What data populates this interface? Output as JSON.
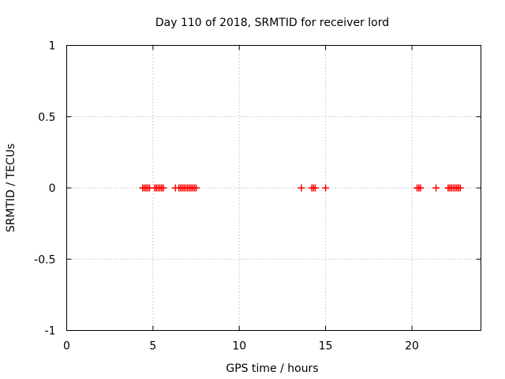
{
  "chart_data": {
    "type": "scatter",
    "title": "Day 110 of 2018, SRMTID for receiver lord",
    "xlabel": "GPS time / hours",
    "ylabel": "SRMTID / TECUs",
    "xlim": [
      0,
      24
    ],
    "ylim": [
      -1,
      1
    ],
    "grid": true,
    "xticks": [
      0,
      5,
      10,
      15,
      20
    ],
    "yticks": [
      -1,
      -0.5,
      0,
      0.5,
      1
    ],
    "xtick_labels": [
      "0",
      "5",
      "10",
      "15",
      "20"
    ],
    "ytick_labels": [
      "-1",
      "-0.5",
      "0",
      "0.5",
      "1"
    ],
    "marker": "+",
    "marker_color": "#ff0000",
    "series": [
      {
        "name": "SRMTID",
        "x": [
          4.4,
          4.5,
          4.6,
          4.7,
          4.8,
          5.1,
          5.2,
          5.3,
          5.4,
          5.5,
          5.6,
          6.3,
          6.5,
          6.6,
          6.7,
          6.8,
          6.9,
          7.0,
          7.1,
          7.2,
          7.3,
          7.4,
          7.5,
          13.6,
          14.2,
          14.3,
          14.4,
          15.0,
          20.3,
          20.4,
          20.5,
          21.4,
          22.1,
          22.2,
          22.3,
          22.4,
          22.5,
          22.6,
          22.7,
          22.8
        ],
        "y": [
          0,
          0,
          0,
          0,
          0,
          0,
          0,
          0,
          0,
          0,
          0,
          0,
          0,
          0,
          0,
          0,
          0,
          0,
          0,
          0,
          0,
          0,
          0,
          0,
          0,
          0,
          0,
          0,
          0,
          0,
          0,
          0,
          0,
          0,
          0,
          0,
          0,
          0,
          0,
          0
        ]
      }
    ]
  }
}
